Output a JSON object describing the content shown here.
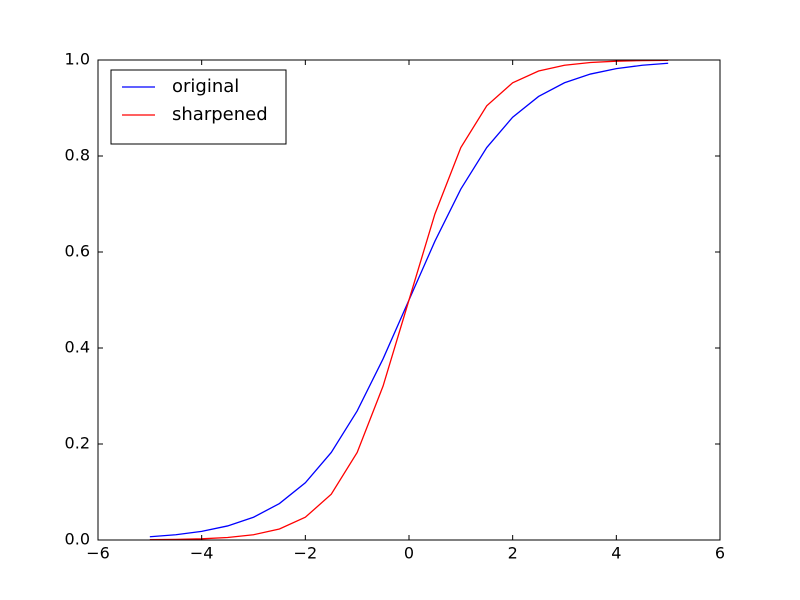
{
  "chart_data": {
    "type": "line",
    "x": [
      -5,
      -4.5,
      -4,
      -3.5,
      -3,
      -2.5,
      -2,
      -1.5,
      -1,
      -0.5,
      0,
      0.5,
      1,
      1.5,
      2,
      2.5,
      3,
      3.5,
      4,
      4.5,
      5
    ],
    "series": [
      {
        "name": "original",
        "color": "#0000ff",
        "values": [
          0.0067,
          0.011,
          0.018,
          0.0293,
          0.0474,
          0.0759,
          0.1192,
          0.1824,
          0.2689,
          0.3775,
          0.5,
          0.6225,
          0.7311,
          0.8176,
          0.8808,
          0.9241,
          0.9526,
          0.9707,
          0.982,
          0.989,
          0.9933
        ]
      },
      {
        "name": "sharpened",
        "color": "#ff0000",
        "values": [
          0.0006,
          0.0012,
          0.0025,
          0.0052,
          0.011,
          0.023,
          0.0474,
          0.0953,
          0.1824,
          0.3208,
          0.5,
          0.6792,
          0.8176,
          0.9047,
          0.9526,
          0.977,
          0.989,
          0.9948,
          0.9975,
          0.9988,
          0.9994
        ]
      }
    ],
    "xlim": [
      -6,
      6
    ],
    "xticks": [
      {
        "value": -6,
        "label": "−6"
      },
      {
        "value": -4,
        "label": "−4"
      },
      {
        "value": -2,
        "label": "−2"
      },
      0,
      2,
      4,
      6
    ],
    "ylim": [
      0,
      1
    ],
    "yticks": [
      {
        "value": 0,
        "label": "0.0"
      },
      0.2,
      0.4,
      0.6,
      0.8,
      {
        "value": 1,
        "label": "1.0"
      }
    ],
    "grid": false,
    "legend": "upper left"
  }
}
